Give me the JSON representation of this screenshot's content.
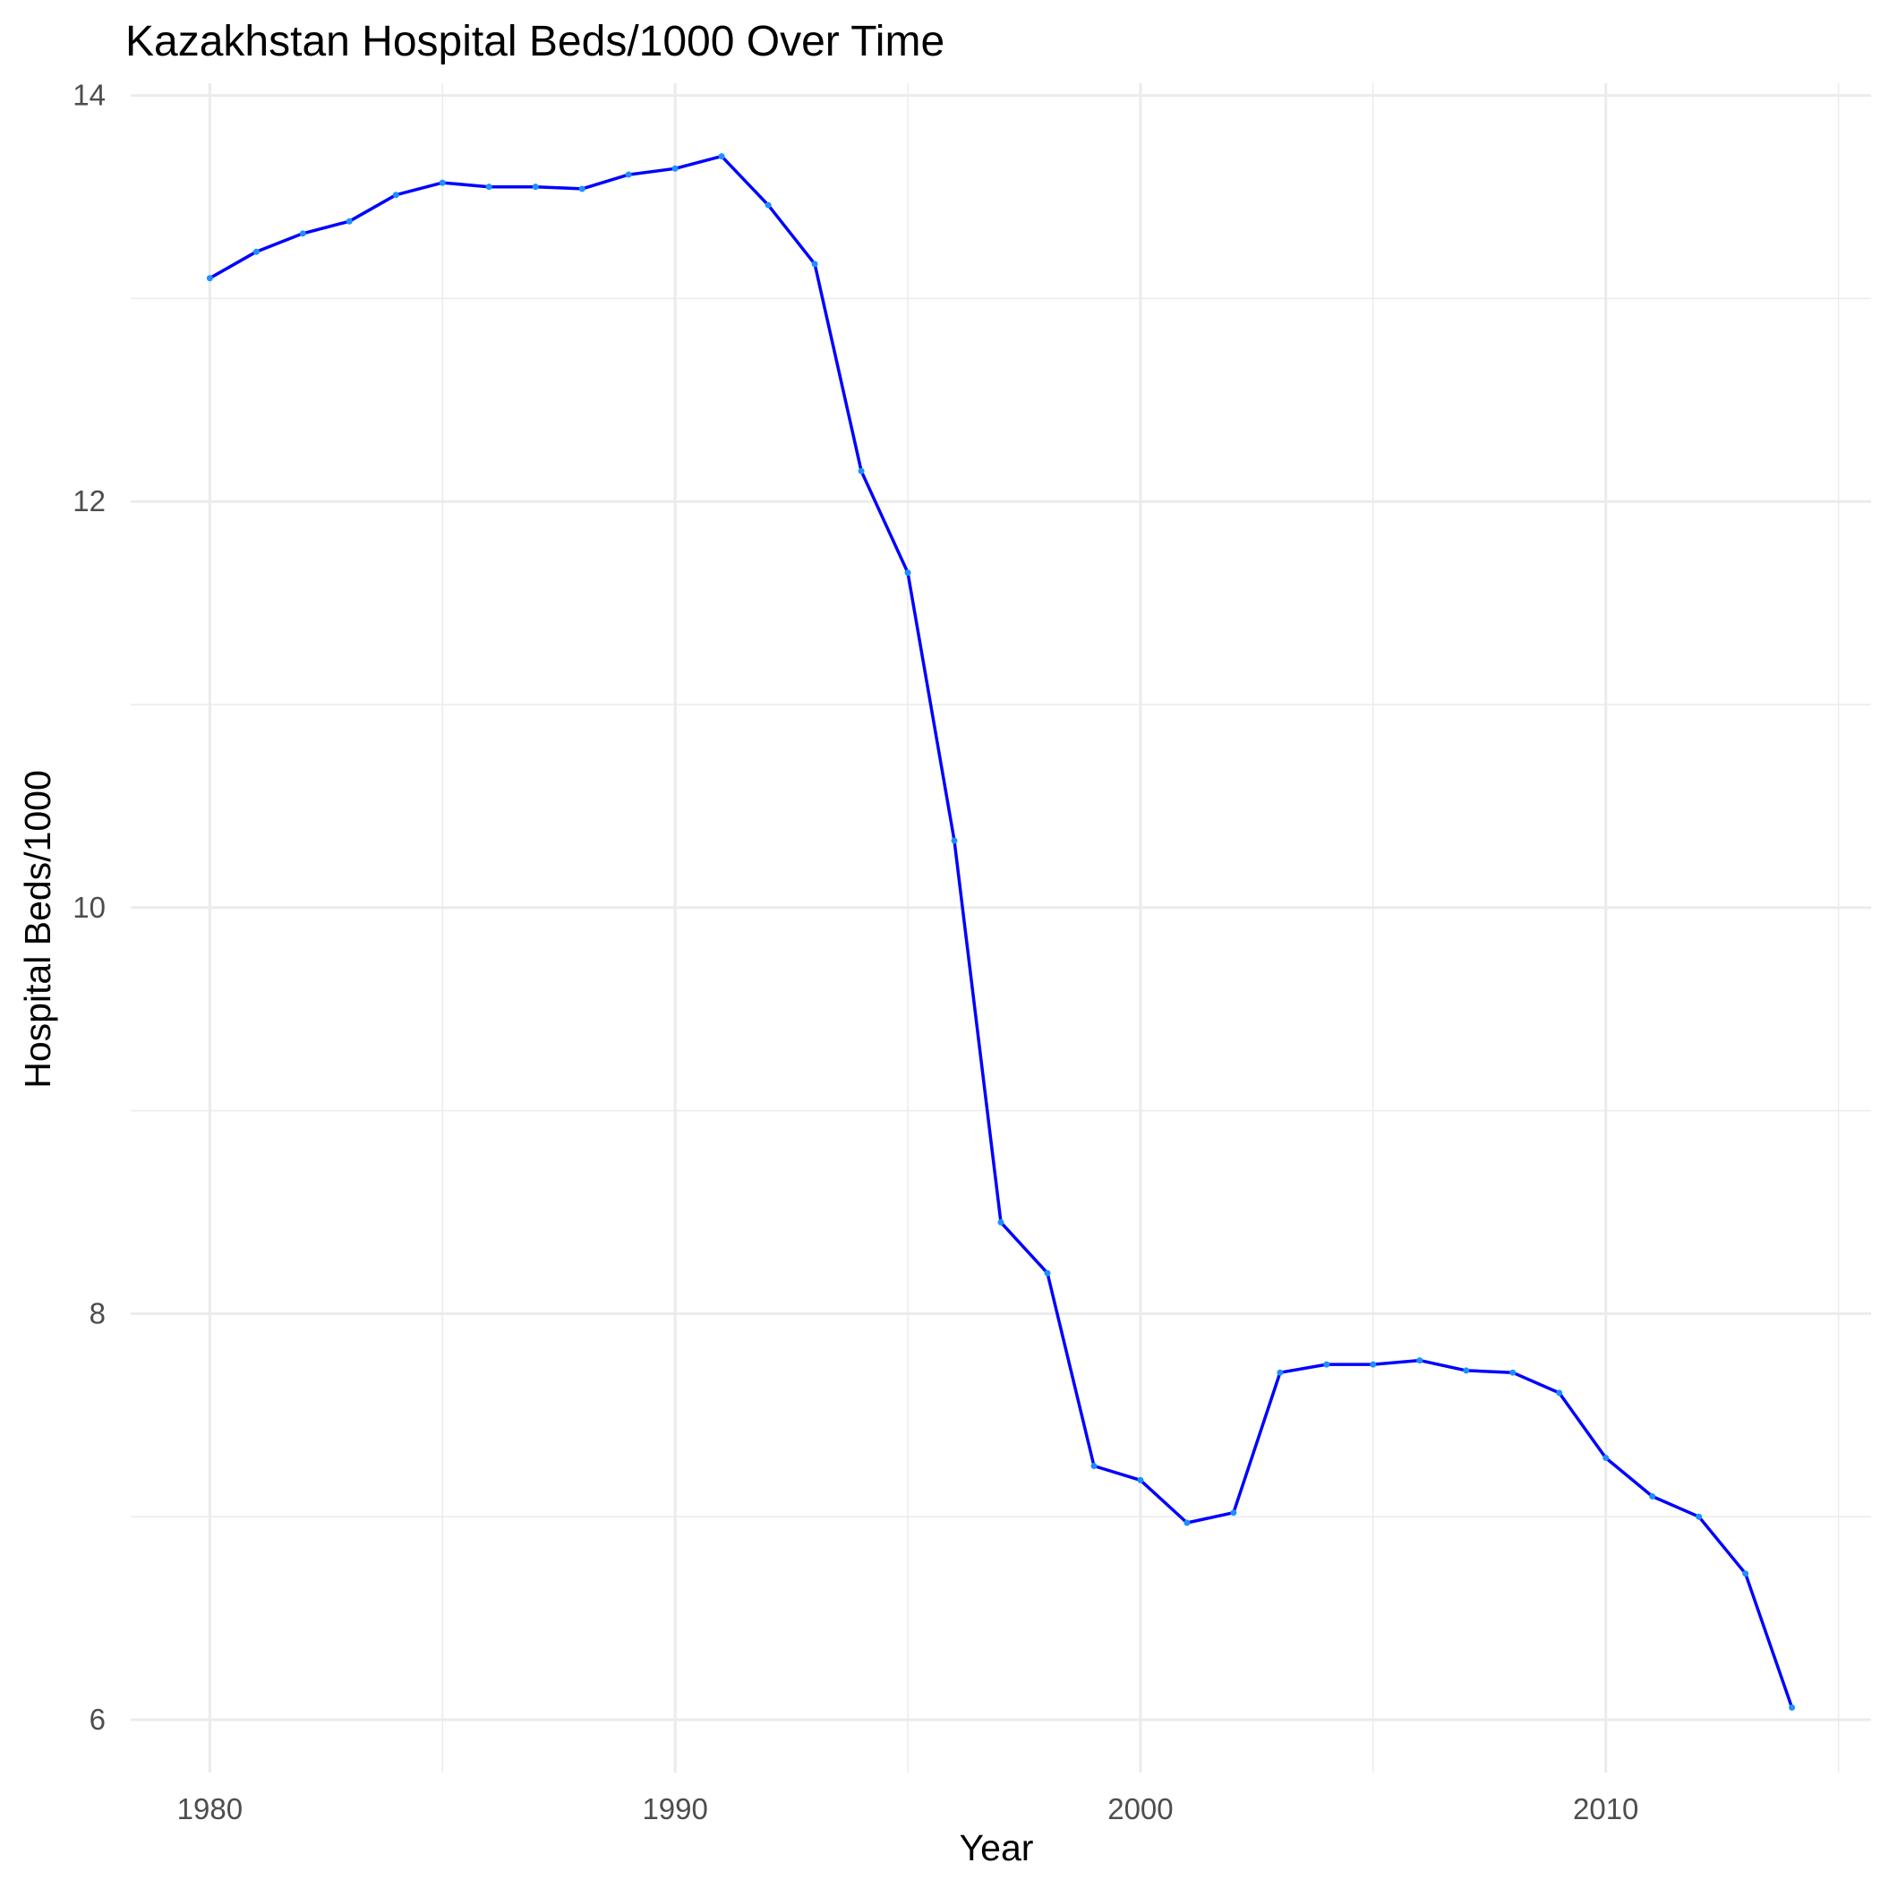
{
  "chart_data": {
    "type": "line",
    "title": "Kazakhstan Hospital Beds/1000 Over Time",
    "xlabel": "Year",
    "ylabel": "Hospital Beds/1000",
    "xlim": [
      1978.3,
      2015.7
    ],
    "ylim": [
      5.74,
      14.06
    ],
    "x_major_ticks": [
      1980,
      1990,
      2000,
      2010
    ],
    "x_minor_ticks": [
      1985,
      1995,
      2005,
      2015
    ],
    "y_major_ticks": [
      6,
      8,
      10,
      12,
      14
    ],
    "y_minor_ticks": [
      7,
      9,
      11,
      13
    ],
    "grid": true,
    "legend": "none",
    "line_color": "#0000ff",
    "point_color": "#1e90ff",
    "series": [
      {
        "x": [
          1980,
          1981,
          1982,
          1983,
          1984,
          1985,
          1986,
          1987,
          1988,
          1989,
          1990,
          1991,
          1992,
          1993,
          1994,
          1995,
          1996,
          1997,
          1998,
          1999,
          2000,
          2001,
          2002,
          2003,
          2004,
          2005,
          2006,
          2007,
          2008,
          2009,
          2010,
          2011,
          2012,
          2013,
          2014
        ],
        "y": [
          13.1,
          13.23,
          13.32,
          13.38,
          13.51,
          13.57,
          13.55,
          13.55,
          13.54,
          13.61,
          13.64,
          13.7,
          13.46,
          13.17,
          12.15,
          11.65,
          10.33,
          8.45,
          8.2,
          7.25,
          7.18,
          6.97,
          7.02,
          7.71,
          7.75,
          7.75,
          7.77,
          7.72,
          7.71,
          7.61,
          7.29,
          7.1,
          7.0,
          6.72,
          6.06
        ]
      }
    ]
  }
}
